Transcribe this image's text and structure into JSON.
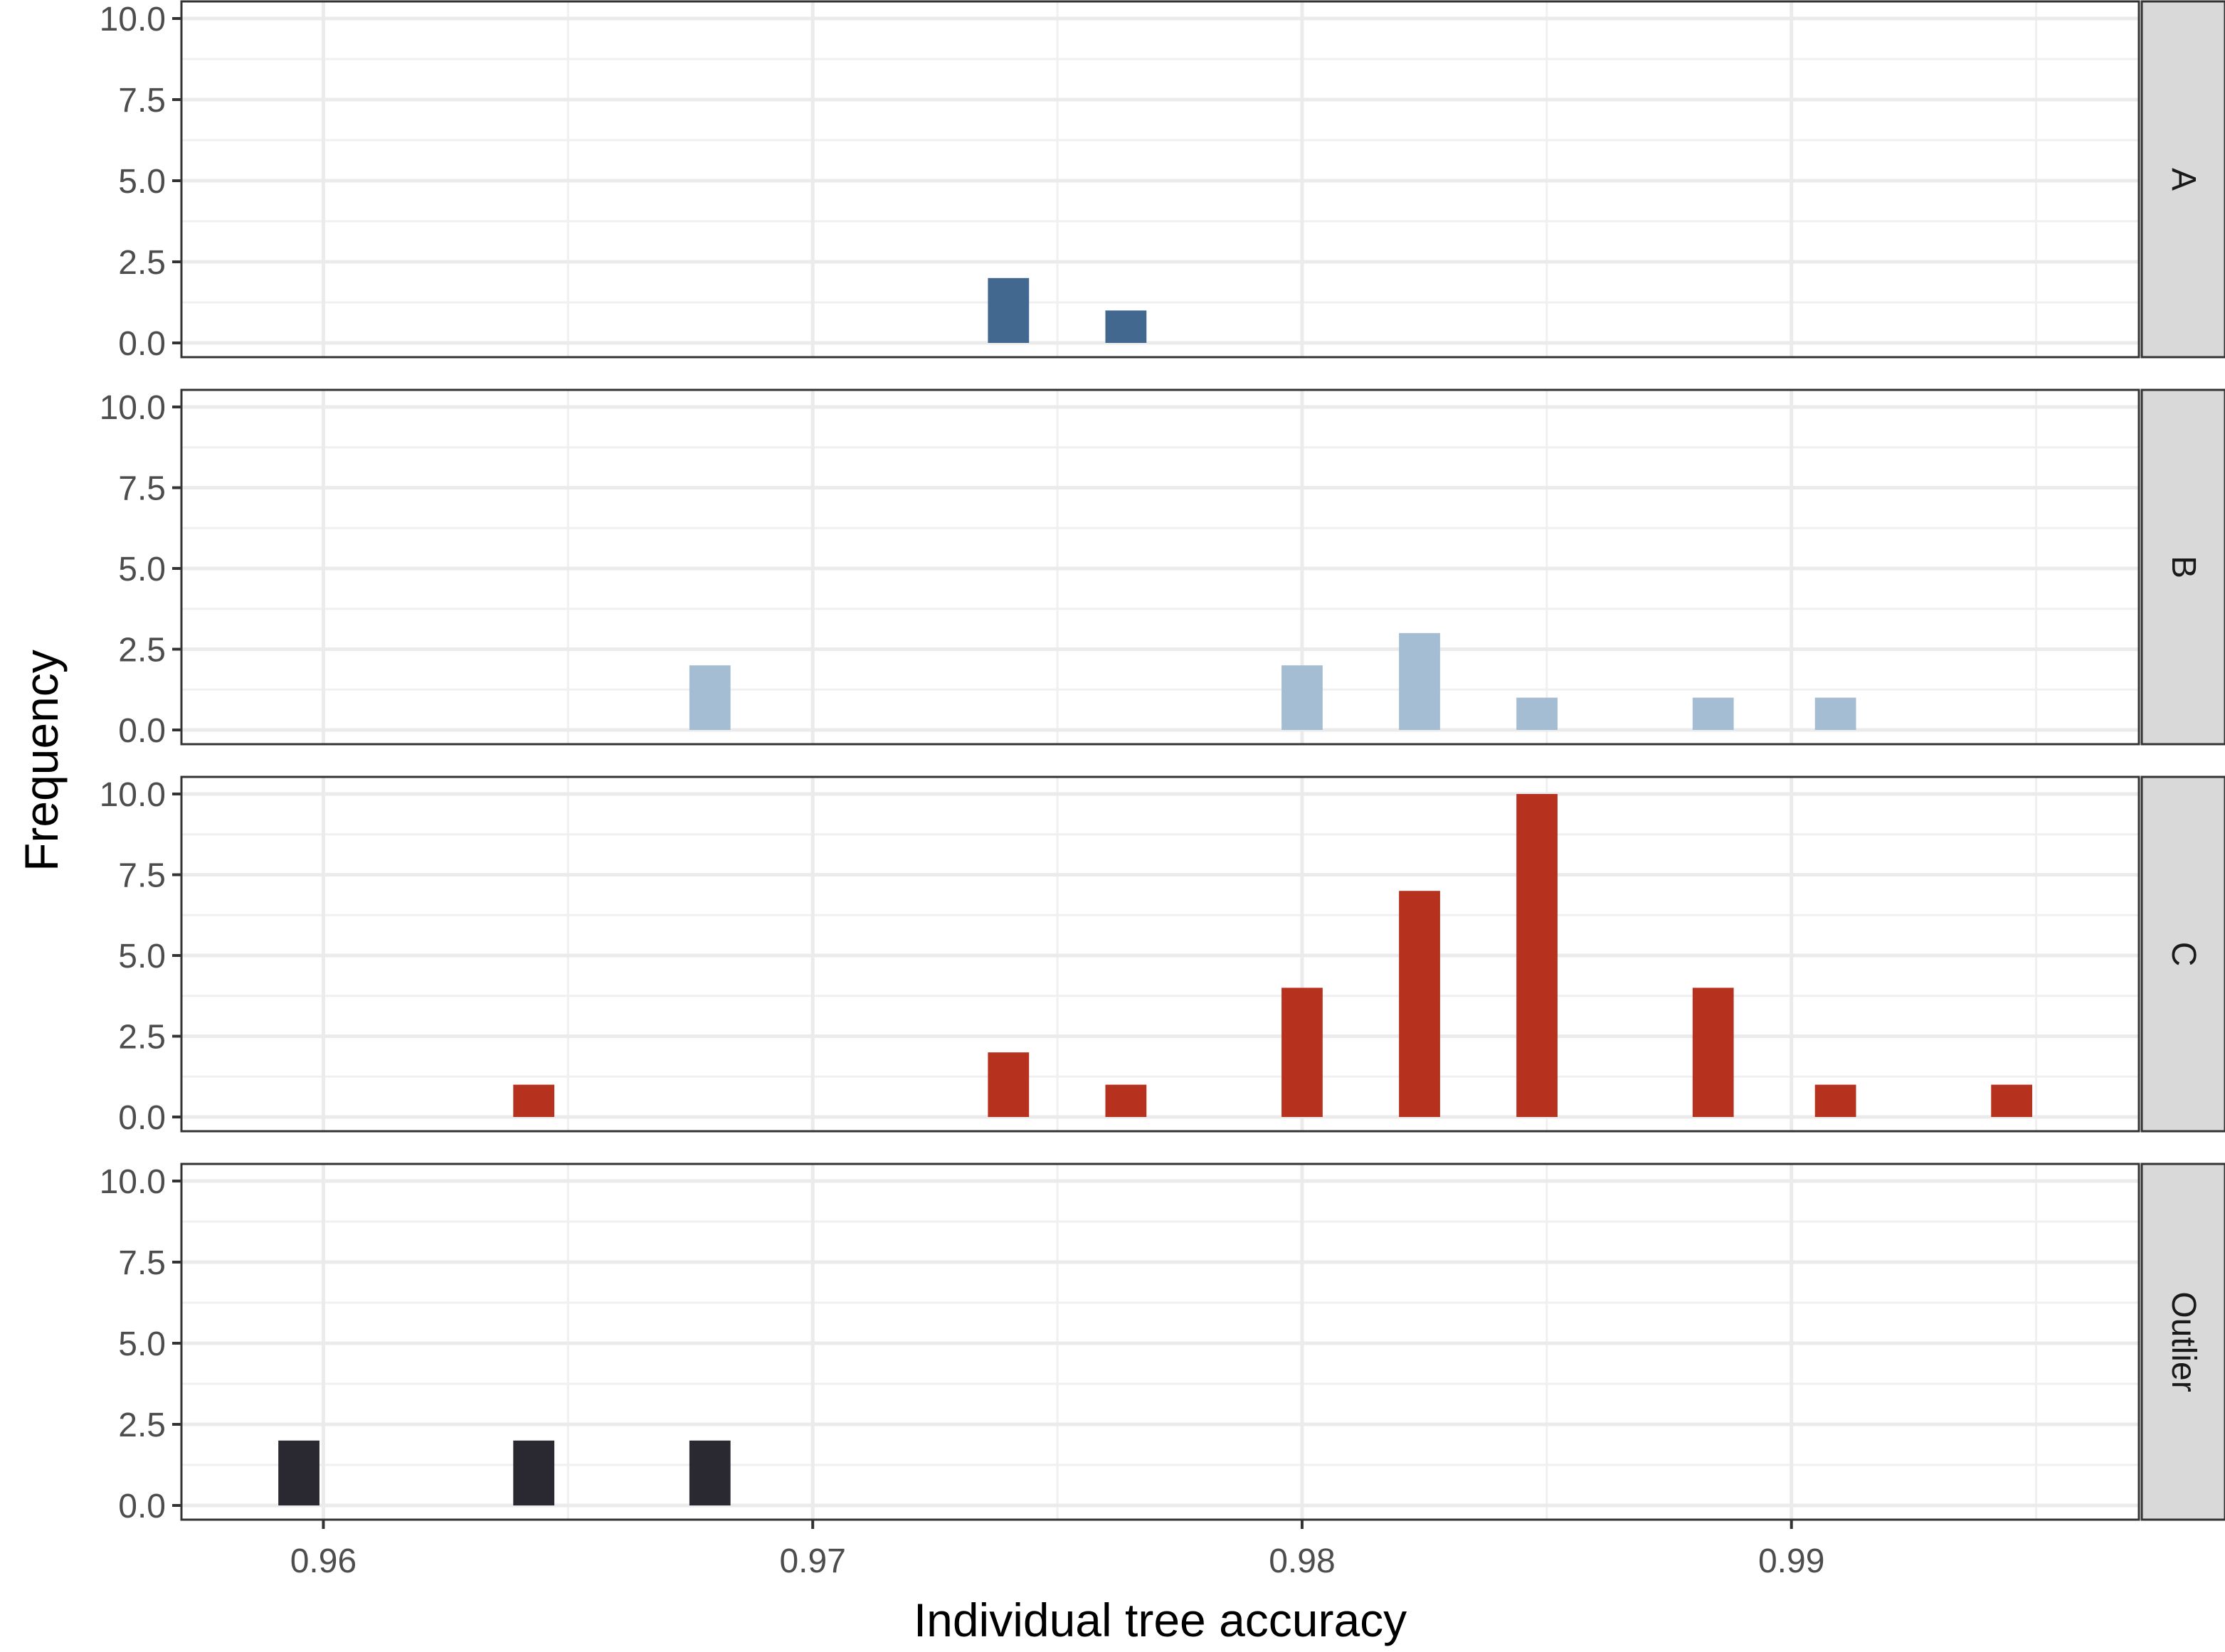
{
  "chart_data": {
    "type": "bar",
    "xlabel": "Individual tree accuracy",
    "ylabel": "Frequency",
    "xlim": [
      0.9571,
      0.9971
    ],
    "ylim": [
      0,
      10
    ],
    "x_ticks": [
      "0.96",
      "0.97",
      "0.98",
      "0.99"
    ],
    "x_tick_values": [
      0.96,
      0.97,
      0.98,
      0.99
    ],
    "y_ticks": [
      "0.0",
      "2.5",
      "5.0",
      "7.5",
      "10.0"
    ],
    "y_tick_values": [
      0,
      2.5,
      5,
      7.5,
      10
    ],
    "bin_width": 0.0012,
    "grid": true,
    "facets": [
      {
        "name": "A",
        "color": "#43688f",
        "bars": [
          {
            "x": 0.974,
            "y": 2
          },
          {
            "x": 0.9764,
            "y": 1
          }
        ]
      },
      {
        "name": "B",
        "color": "#a4bdd3",
        "bars": [
          {
            "x": 0.9679,
            "y": 2
          },
          {
            "x": 0.98,
            "y": 2
          },
          {
            "x": 0.9824,
            "y": 3
          },
          {
            "x": 0.9848,
            "y": 1
          },
          {
            "x": 0.9884,
            "y": 1
          },
          {
            "x": 0.9909,
            "y": 1
          }
        ]
      },
      {
        "name": "C",
        "color": "#b6321e",
        "bars": [
          {
            "x": 0.9643,
            "y": 1
          },
          {
            "x": 0.974,
            "y": 2
          },
          {
            "x": 0.9764,
            "y": 1
          },
          {
            "x": 0.98,
            "y": 4
          },
          {
            "x": 0.9824,
            "y": 7
          },
          {
            "x": 0.9848,
            "y": 10
          },
          {
            "x": 0.9884,
            "y": 4
          },
          {
            "x": 0.9909,
            "y": 1
          },
          {
            "x": 0.9945,
            "y": 1
          }
        ]
      },
      {
        "name": "Outlier",
        "color": "#2a2830",
        "bars": [
          {
            "x": 0.9595,
            "y": 2
          },
          {
            "x": 0.9643,
            "y": 2
          },
          {
            "x": 0.9679,
            "y": 2
          }
        ]
      }
    ]
  }
}
